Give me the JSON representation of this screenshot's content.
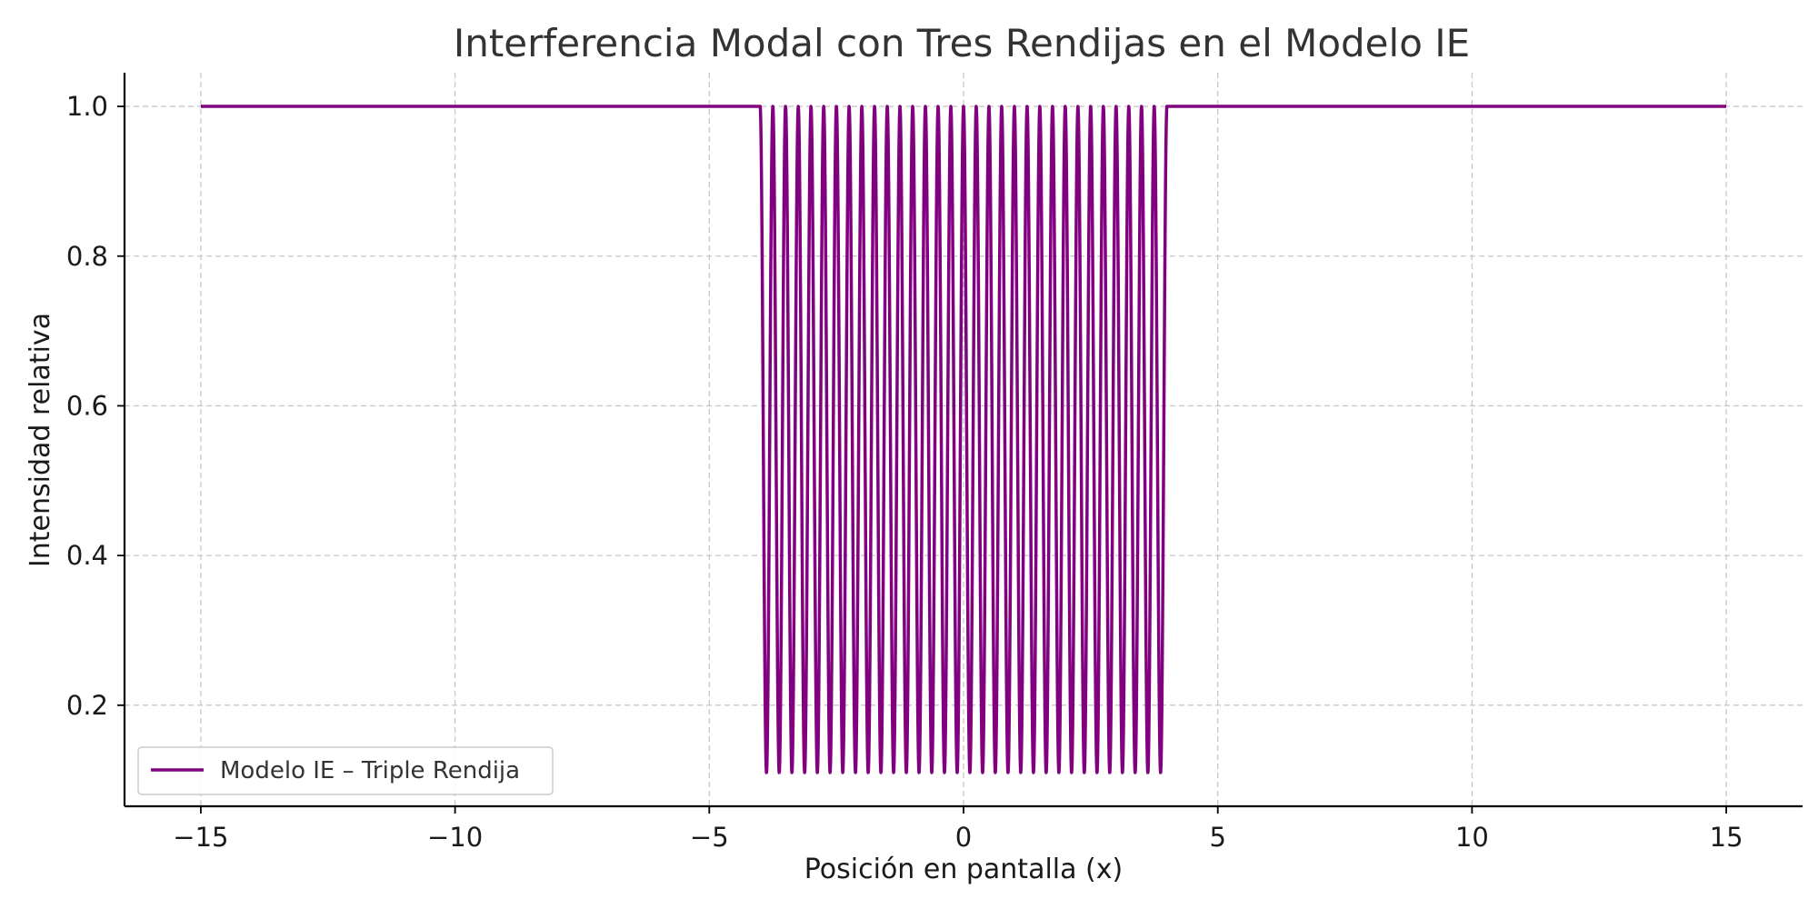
{
  "chart_data": {
    "type": "line",
    "title": "Interferencia Modal con Tres Rendijas en el Modelo IE",
    "xlabel": "Posición en pantalla (x)",
    "ylabel": "Intensidad relativa",
    "xlim": [
      -16.5,
      16.5
    ],
    "ylim": [
      0.065,
      1.045
    ],
    "xticks": [
      -15,
      -10,
      -5,
      0,
      5,
      10,
      15
    ],
    "xtick_labels": [
      "−15",
      "−10",
      "−5",
      "0",
      "5",
      "10",
      "15"
    ],
    "yticks": [
      0.2,
      0.4,
      0.6,
      0.8,
      1.0
    ],
    "ytick_labels": [
      "0.2",
      "0.4",
      "0.6",
      "0.8",
      "1.0"
    ],
    "grid": true,
    "legend_position": "lower-left",
    "series": [
      {
        "name": "Modelo IE – Triple Rendija",
        "color": "#800080",
        "x_range": [
          -15,
          15
        ],
        "baseline": 1.0,
        "oscillation_region": [
          -4,
          4
        ],
        "fringe_period": 0.5,
        "minimum": 0.11,
        "maximum": 1.0
      }
    ]
  }
}
